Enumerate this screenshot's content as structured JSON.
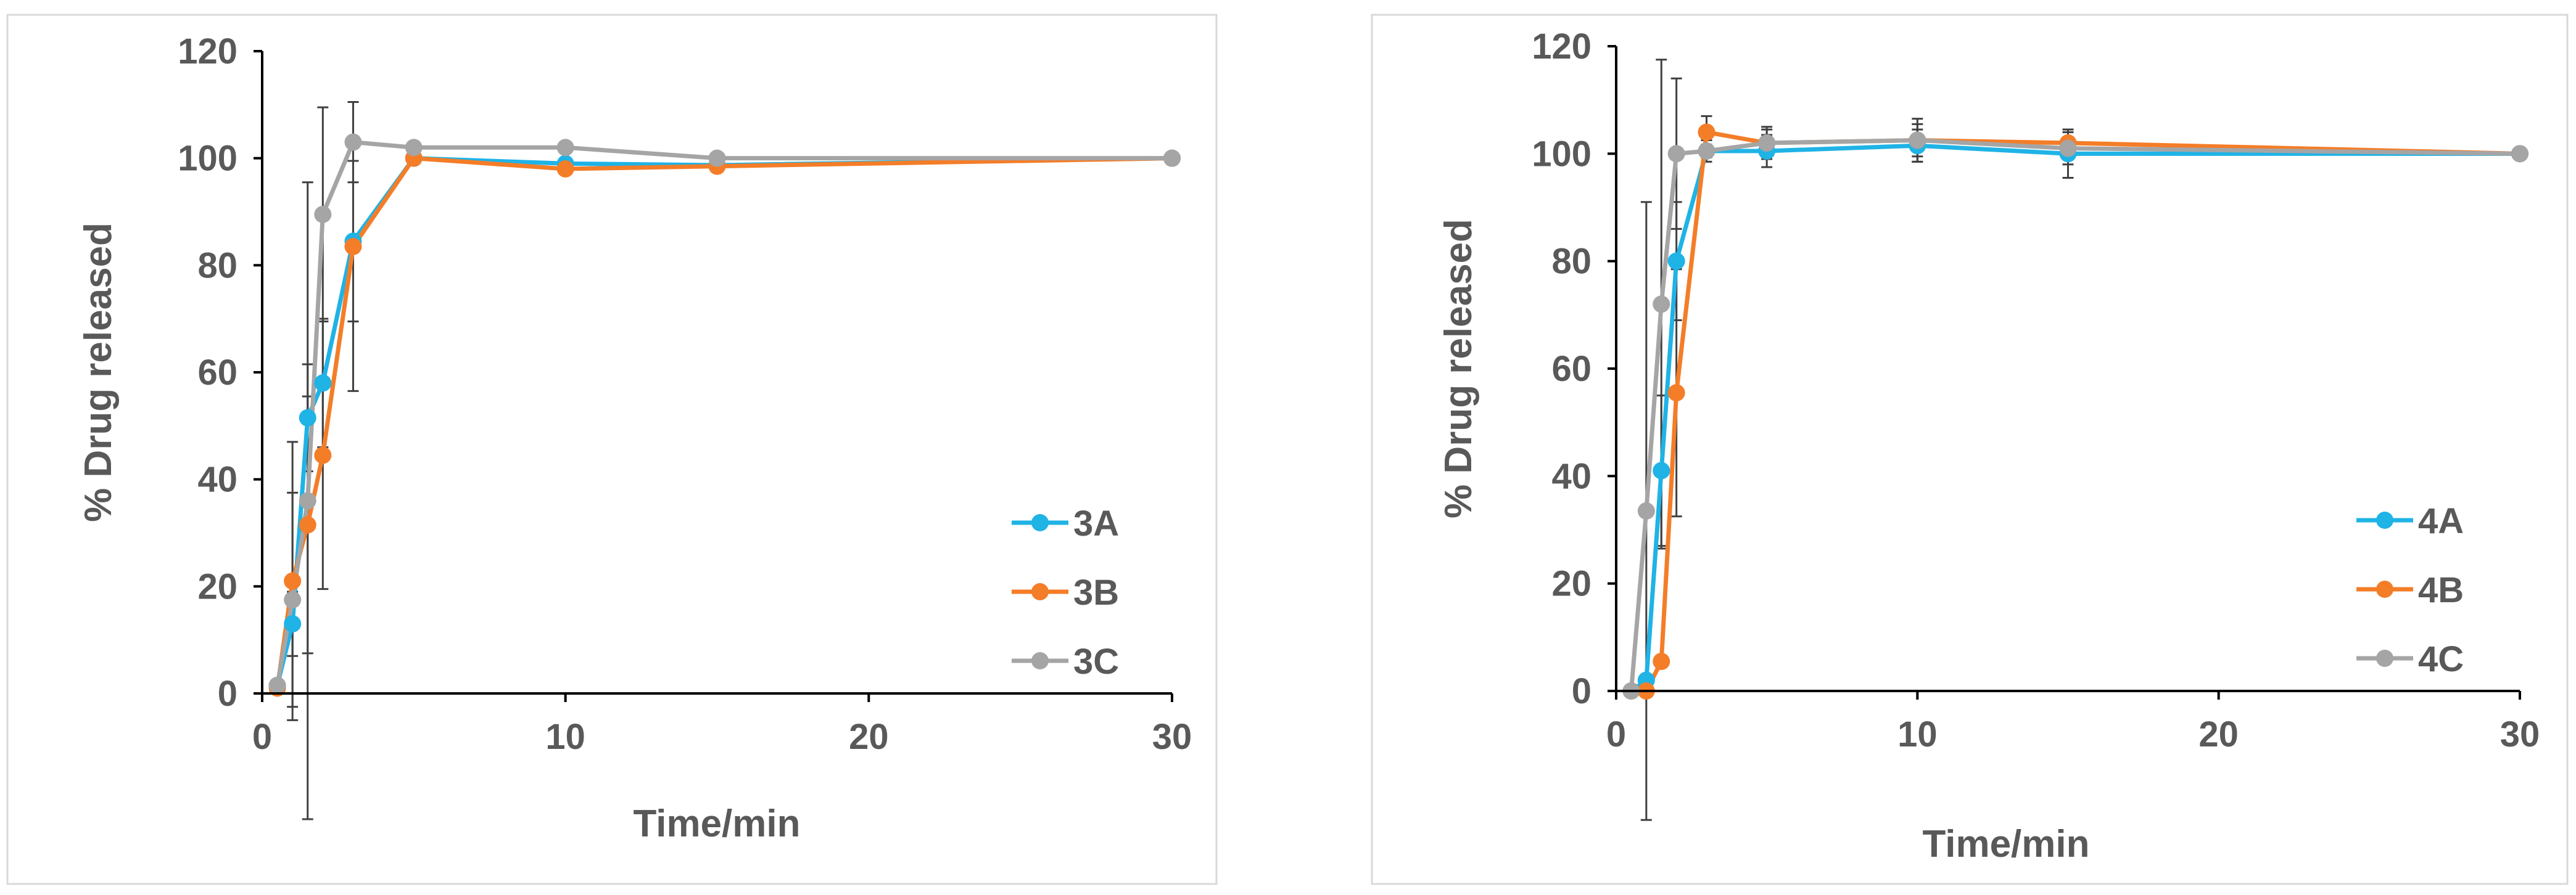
{
  "chart_data": [
    {
      "type": "line",
      "title": "",
      "xlabel": "Time/min",
      "ylabel": "% Drug released",
      "xlim": [
        0,
        30
      ],
      "ylim": [
        0,
        120
      ],
      "x_ticks": [
        "0",
        "10",
        "20",
        "30"
      ],
      "y_ticks": [
        "0",
        "20",
        "40",
        "60",
        "80",
        "100",
        "120"
      ],
      "grid": false,
      "legend_position": "bottom-right",
      "series": [
        {
          "name": "3A",
          "color": "#1fb3e6",
          "x": [
            0.5,
            1,
            1.5,
            2,
            3,
            5,
            10,
            15,
            30
          ],
          "y": [
            1.5,
            13,
            51.5,
            58,
            84.5,
            100,
            99,
            98.7,
            100
          ],
          "err": [
            0,
            6,
            10,
            12,
            15,
            0.5,
            1,
            0.8,
            0
          ]
        },
        {
          "name": "3B",
          "color": "#f47d28",
          "x": [
            0.5,
            1,
            1.5,
            2,
            3,
            5,
            10,
            15,
            30
          ],
          "y": [
            1,
            21,
            31.5,
            44.5,
            83.5,
            100,
            98,
            98.5,
            100
          ],
          "err": [
            0,
            26,
            24,
            25,
            27,
            0.8,
            1,
            0.8,
            0
          ]
        },
        {
          "name": "3C",
          "color": "#a5a5a5",
          "x": [
            0.5,
            1,
            1.5,
            2,
            3,
            5,
            10,
            15,
            30
          ],
          "y": [
            1.5,
            17.5,
            36,
            89.5,
            103,
            102,
            102,
            100,
            100
          ],
          "err": [
            0,
            20,
            59.5,
            20,
            7.5,
            0.8,
            0.8,
            0.5,
            0
          ]
        }
      ]
    },
    {
      "type": "line",
      "title": "",
      "xlabel": "Time/min",
      "ylabel": "% Drug released",
      "xlim": [
        0,
        30
      ],
      "ylim": [
        0,
        120
      ],
      "x_ticks": [
        "0",
        "10",
        "20",
        "30"
      ],
      "y_ticks": [
        "0",
        "20",
        "40",
        "60",
        "80",
        "100",
        "120"
      ],
      "grid": false,
      "legend_position": "bottom-right",
      "series": [
        {
          "name": "4A",
          "color": "#1fb3e6",
          "x": [
            0.5,
            1,
            1.5,
            2,
            3,
            5,
            10,
            15,
            30
          ],
          "y": [
            0,
            2,
            41,
            80,
            100.5,
            100.5,
            101.5,
            100,
            100
          ],
          "err": [
            0,
            1,
            14,
            11,
            1.2,
            3,
            3,
            4.5,
            0
          ]
        },
        {
          "name": "4B",
          "color": "#f47d28",
          "x": [
            0.5,
            1,
            1.5,
            2,
            3,
            5,
            10,
            15,
            30
          ],
          "y": [
            0,
            0,
            5.5,
            55.5,
            104,
            102,
            102.5,
            102,
            100
          ],
          "err": [
            0,
            0,
            1,
            23,
            3,
            3,
            3,
            2.5,
            0
          ]
        },
        {
          "name": "4C",
          "color": "#a5a5a5",
          "x": [
            0.5,
            1,
            1.5,
            2,
            3,
            5,
            10,
            15,
            30
          ],
          "y": [
            0,
            33.5,
            72,
            100,
            100.5,
            102,
            102.5,
            101,
            100
          ],
          "err": [
            0,
            57.5,
            45.5,
            14,
            2,
            2.5,
            4,
            3,
            0
          ]
        }
      ]
    }
  ]
}
